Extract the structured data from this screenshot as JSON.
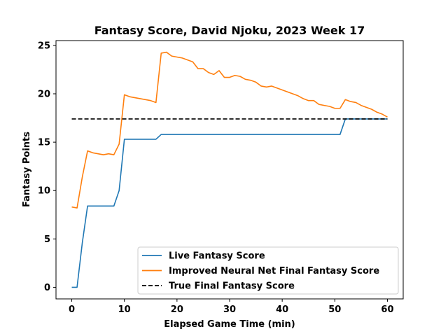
{
  "chart_data": {
    "type": "line",
    "title": "Fantasy Score, David Njoku, 2023 Week 17",
    "xlabel": "Elapsed Game Time (min)",
    "ylabel": "Fantasy Points",
    "xlim": [
      -3,
      63
    ],
    "ylim": [
      -1.2,
      25.5
    ],
    "xticks": [
      0,
      10,
      20,
      30,
      40,
      50,
      60
    ],
    "yticks": [
      0,
      5,
      10,
      15,
      20,
      25
    ],
    "grid": false,
    "legend_position": "lower-right",
    "series": [
      {
        "name": "Live Fantasy Score",
        "color": "#1f77b4",
        "style": "solid",
        "x": [
          0,
          1,
          2,
          3,
          4,
          5,
          6,
          7,
          8,
          9,
          10,
          11,
          12,
          13,
          14,
          15,
          16,
          17,
          18,
          19,
          20,
          25,
          30,
          35,
          40,
          45,
          50,
          51,
          52,
          53,
          54,
          55,
          56,
          57,
          58,
          59,
          60
        ],
        "y": [
          0,
          0,
          4.6,
          8.4,
          8.4,
          8.4,
          8.4,
          8.4,
          8.4,
          10.0,
          15.3,
          15.3,
          15.3,
          15.3,
          15.3,
          15.3,
          15.3,
          15.8,
          15.8,
          15.8,
          15.8,
          15.8,
          15.8,
          15.8,
          15.8,
          15.8,
          15.8,
          15.8,
          17.4,
          17.4,
          17.4,
          17.4,
          17.4,
          17.4,
          17.4,
          17.4,
          17.4
        ]
      },
      {
        "name": "Improved Neural Net Final Fantasy Score",
        "color": "#ff7f0e",
        "style": "solid",
        "x": [
          0,
          1,
          2,
          3,
          4,
          5,
          6,
          7,
          8,
          9,
          10,
          11,
          12,
          13,
          14,
          15,
          16,
          17,
          18,
          19,
          20,
          21,
          22,
          23,
          24,
          25,
          26,
          27,
          28,
          29,
          30,
          31,
          32,
          33,
          34,
          35,
          36,
          37,
          38,
          39,
          40,
          41,
          42,
          43,
          44,
          45,
          46,
          47,
          48,
          49,
          50,
          51,
          52,
          53,
          54,
          55,
          56,
          57,
          58,
          59,
          60
        ],
        "y": [
          8.3,
          8.2,
          11.4,
          14.1,
          13.9,
          13.8,
          13.7,
          13.8,
          13.7,
          14.8,
          19.9,
          19.7,
          19.6,
          19.5,
          19.4,
          19.3,
          19.1,
          24.2,
          24.3,
          23.9,
          23.8,
          23.7,
          23.5,
          23.3,
          22.6,
          22.6,
          22.2,
          22.0,
          22.4,
          21.7,
          21.7,
          21.9,
          21.8,
          21.5,
          21.4,
          21.2,
          20.8,
          20.7,
          20.8,
          20.6,
          20.4,
          20.2,
          20.0,
          19.8,
          19.5,
          19.3,
          19.3,
          18.9,
          18.8,
          18.7,
          18.5,
          18.5,
          19.4,
          19.2,
          19.1,
          18.8,
          18.6,
          18.4,
          18.1,
          17.9,
          17.6
        ]
      },
      {
        "name": "True Final Fantasy Score",
        "color": "#000000",
        "style": "dashed",
        "x": [
          0,
          60
        ],
        "y": [
          17.4,
          17.4
        ]
      }
    ]
  }
}
